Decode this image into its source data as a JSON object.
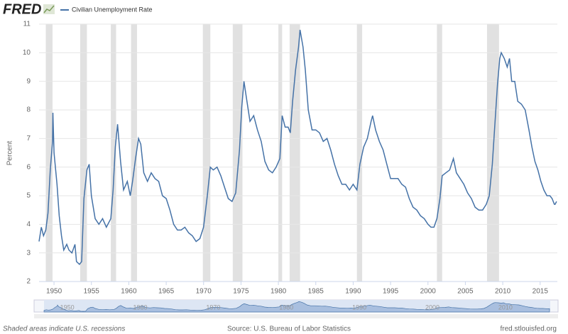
{
  "chart_data": {
    "type": "line",
    "logo": "FRED",
    "y_label": "Percent",
    "note": "Shaded areas indicate U.S. recessions",
    "source": "Source: U.S. Bureau of Labor Statistics",
    "site": "fred.stlouisfed.org",
    "xlim": [
      1948,
      2017.3
    ],
    "ylim": [
      2,
      11
    ],
    "xticks": [
      1950,
      1955,
      1960,
      1965,
      1970,
      1975,
      1980,
      1985,
      1990,
      1995,
      2000,
      2005,
      2010,
      2015
    ],
    "yticks": [
      2,
      3,
      4,
      5,
      6,
      7,
      8,
      9,
      10,
      11
    ],
    "navigator_xticks": [
      1950,
      1960,
      1970,
      1980,
      1990,
      2000,
      2010
    ],
    "grid": true,
    "recession_color": "#e1e1e1",
    "recessions": [
      [
        1948.9,
        1949.8
      ],
      [
        1953.5,
        1954.4
      ],
      [
        1957.6,
        1958.3
      ],
      [
        1960.3,
        1961.1
      ],
      [
        1969.9,
        1970.9
      ],
      [
        1973.9,
        1975.2
      ],
      [
        1980.0,
        1980.5
      ],
      [
        1981.5,
        1982.9
      ],
      [
        1990.5,
        1991.2
      ],
      [
        2001.2,
        2001.9
      ],
      [
        2007.9,
        2009.5
      ]
    ],
    "x": [
      1948.0,
      1948.3,
      1948.6,
      1948.9,
      1949.2,
      1949.5,
      1949.8,
      1949.85,
      1950.0,
      1950.4,
      1950.7,
      1951.0,
      1951.3,
      1951.7,
      1952.0,
      1952.4,
      1952.8,
      1953.0,
      1953.4,
      1953.7,
      1954.0,
      1954.4,
      1954.7,
      1955.0,
      1955.5,
      1956.0,
      1956.5,
      1957.0,
      1957.6,
      1957.9,
      1958.2,
      1958.5,
      1958.9,
      1959.3,
      1959.8,
      1960.2,
      1960.5,
      1960.9,
      1961.3,
      1961.6,
      1962.0,
      1962.5,
      1963.0,
      1963.5,
      1964.0,
      1964.5,
      1965.0,
      1965.5,
      1966.0,
      1966.5,
      1967.0,
      1967.5,
      1968.0,
      1968.5,
      1969.0,
      1969.5,
      1970.0,
      1970.5,
      1970.9,
      1971.3,
      1971.8,
      1972.3,
      1972.8,
      1973.3,
      1973.8,
      1974.3,
      1974.8,
      1975.1,
      1975.4,
      1975.8,
      1976.2,
      1976.7,
      1977.2,
      1977.7,
      1978.2,
      1978.7,
      1979.2,
      1979.7,
      1980.2,
      1980.5,
      1980.9,
      1981.3,
      1981.6,
      1981.9,
      1982.3,
      1982.7,
      1982.9,
      1983.3,
      1983.6,
      1984.0,
      1984.5,
      1985.0,
      1985.5,
      1986.0,
      1986.5,
      1987.0,
      1987.5,
      1988.0,
      1988.5,
      1989.0,
      1989.5,
      1990.0,
      1990.5,
      1990.9,
      1991.4,
      1991.9,
      1992.4,
      1992.6,
      1993.0,
      1993.5,
      1994.0,
      1994.5,
      1995.0,
      1995.5,
      1996.0,
      1996.5,
      1997.0,
      1997.5,
      1998.0,
      1998.5,
      1999.0,
      1999.5,
      2000.0,
      2000.4,
      2000.8,
      2001.2,
      2001.6,
      2001.9,
      2002.4,
      2002.9,
      2003.4,
      2003.8,
      2004.3,
      2004.8,
      2005.3,
      2005.8,
      2006.3,
      2006.8,
      2007.3,
      2007.8,
      2008.2,
      2008.6,
      2008.9,
      2009.3,
      2009.6,
      2009.8,
      2010.2,
      2010.6,
      2010.9,
      2011.2,
      2011.6,
      2012.0,
      2012.5,
      2013.0,
      2013.5,
      2013.9,
      2014.3,
      2014.7,
      2015.1,
      2015.5,
      2015.9,
      2016.3,
      2016.6,
      2016.9,
      2017.0,
      2017.2
    ],
    "series": [
      {
        "name": "Civilian Unemployment Rate",
        "color": "#4572a7",
        "values": [
          3.4,
          3.9,
          3.6,
          3.8,
          4.4,
          5.9,
          6.9,
          7.9,
          6.5,
          5.4,
          4.3,
          3.6,
          3.1,
          3.3,
          3.1,
          3.0,
          3.3,
          2.7,
          2.6,
          2.7,
          4.9,
          5.9,
          6.1,
          5.0,
          4.2,
          4.0,
          4.2,
          3.9,
          4.2,
          5.2,
          6.7,
          7.5,
          6.2,
          5.2,
          5.5,
          5.0,
          5.5,
          6.3,
          7.0,
          6.8,
          5.8,
          5.5,
          5.8,
          5.6,
          5.5,
          5.0,
          4.9,
          4.5,
          4.0,
          3.8,
          3.8,
          3.9,
          3.7,
          3.6,
          3.4,
          3.5,
          3.9,
          5.0,
          6.0,
          5.9,
          6.0,
          5.7,
          5.3,
          4.9,
          4.8,
          5.1,
          6.6,
          8.1,
          9.0,
          8.3,
          7.6,
          7.8,
          7.3,
          6.9,
          6.2,
          5.9,
          5.8,
          6.0,
          6.3,
          7.8,
          7.4,
          7.4,
          7.2,
          8.3,
          9.4,
          10.2,
          10.8,
          10.2,
          9.4,
          8.0,
          7.3,
          7.3,
          7.2,
          6.9,
          7.0,
          6.6,
          6.1,
          5.7,
          5.4,
          5.4,
          5.2,
          5.4,
          5.2,
          6.1,
          6.7,
          7.0,
          7.6,
          7.8,
          7.3,
          6.9,
          6.6,
          6.1,
          5.6,
          5.6,
          5.6,
          5.4,
          5.3,
          4.9,
          4.6,
          4.5,
          4.3,
          4.2,
          4.0,
          3.9,
          3.9,
          4.2,
          4.9,
          5.7,
          5.8,
          5.9,
          6.3,
          5.8,
          5.6,
          5.4,
          5.1,
          4.9,
          4.6,
          4.5,
          4.5,
          4.7,
          5.0,
          6.1,
          7.3,
          8.9,
          9.8,
          10.0,
          9.8,
          9.5,
          9.8,
          9.0,
          9.0,
          8.3,
          8.2,
          8.0,
          7.3,
          6.7,
          6.2,
          5.9,
          5.5,
          5.2,
          5.0,
          5.0,
          4.9,
          4.7,
          4.7,
          4.8
        ]
      }
    ]
  }
}
